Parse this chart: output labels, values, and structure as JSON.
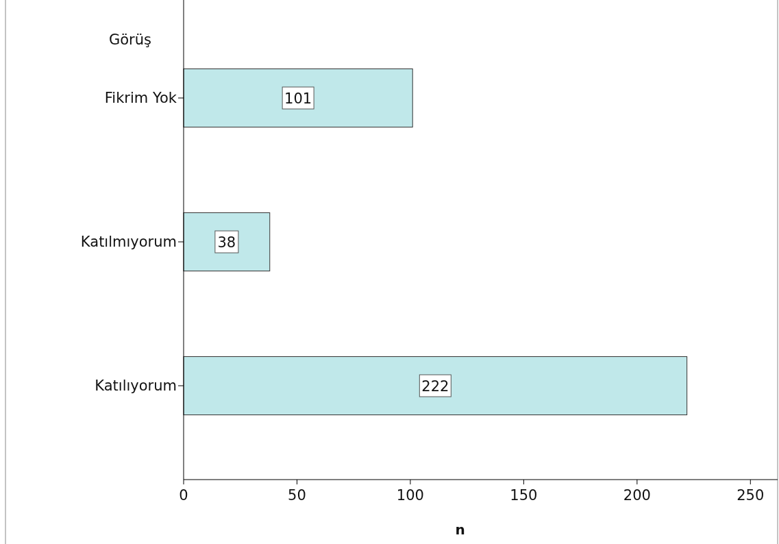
{
  "chart_data": {
    "type": "bar",
    "orientation": "horizontal",
    "ylabel": "Görüş",
    "xlabel": "n",
    "categories": [
      "Fikrim Yok",
      "Katılmıyorum",
      "Katılıyorum"
    ],
    "values": [
      101,
      38,
      222
    ],
    "color": "#c0e8ea",
    "xlim": [
      0,
      262
    ],
    "xticks": [
      0,
      50,
      100,
      150,
      200,
      250
    ],
    "data_labels": true
  }
}
